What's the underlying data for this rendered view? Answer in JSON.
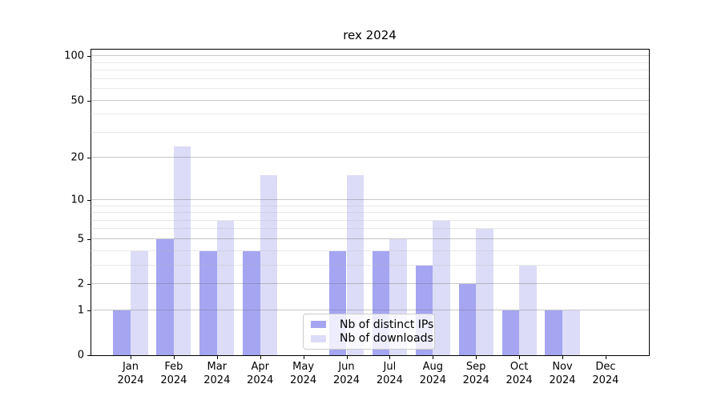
{
  "title": "rex 2024",
  "chart_data": {
    "type": "bar",
    "title": "rex 2024",
    "categories": [
      {
        "month": "Jan",
        "year": "2024"
      },
      {
        "month": "Feb",
        "year": "2024"
      },
      {
        "month": "Mar",
        "year": "2024"
      },
      {
        "month": "Apr",
        "year": "2024"
      },
      {
        "month": "May",
        "year": "2024"
      },
      {
        "month": "Jun",
        "year": "2024"
      },
      {
        "month": "Jul",
        "year": "2024"
      },
      {
        "month": "Aug",
        "year": "2024"
      },
      {
        "month": "Sep",
        "year": "2024"
      },
      {
        "month": "Oct",
        "year": "2024"
      },
      {
        "month": "Nov",
        "year": "2024"
      },
      {
        "month": "Dec",
        "year": "2024"
      }
    ],
    "series": [
      {
        "name": "Nb of distinct IPs",
        "color": "#a5a5f2",
        "values": [
          1,
          5,
          4,
          4,
          0,
          4,
          4,
          3,
          2,
          1,
          1,
          0
        ]
      },
      {
        "name": "Nb of downloads",
        "color": "#dcdcf8",
        "values": [
          4,
          24,
          7,
          15,
          0,
          15,
          5,
          7,
          6,
          3,
          1,
          0
        ]
      }
    ],
    "yscale": "log1p",
    "ylim": [
      0,
      112
    ],
    "yticks": [
      0,
      1,
      2,
      5,
      10,
      20,
      50,
      100
    ],
    "yticks_minor": [
      3,
      4,
      6,
      7,
      8,
      9,
      30,
      40,
      60,
      70,
      80,
      90
    ],
    "xlabel": "",
    "ylabel": "",
    "grid": true,
    "legend_position": "inside-bottom-center"
  }
}
